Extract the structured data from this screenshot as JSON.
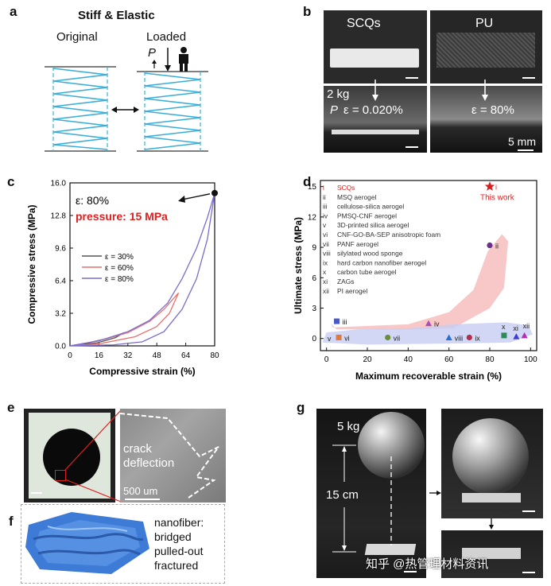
{
  "panels": {
    "a": {
      "label": "a",
      "title": "Stiff & Elastic",
      "original": "Original",
      "loaded": "Loaded",
      "force": "P"
    },
    "b": {
      "label": "b",
      "scqs": "SCQs",
      "pu": "PU",
      "weight": "2 kg",
      "force": "P",
      "strain_scqs": "ε = 0.020%",
      "strain_pu": "ε = 80%",
      "scale": "5 mm"
    },
    "c": {
      "label": "c"
    },
    "d": {
      "label": "d"
    },
    "e": {
      "label": "e",
      "crack1": "crack",
      "crack2": "deflection",
      "scale": "500 um"
    },
    "f": {
      "label": "f",
      "lines": [
        "nanofiber:",
        "bridged",
        "pulled-out",
        "fractured"
      ]
    },
    "g": {
      "label": "g",
      "weight": "5 kg",
      "height": "15 cm",
      "watermark": "知乎 @热管理材料资讯"
    }
  },
  "chart_data": [
    {
      "type": "line",
      "xlabel": "Compressive strain (%)",
      "ylabel": "Compressive stress (MPa)",
      "xlim": [
        0,
        80
      ],
      "ylim": [
        0,
        16
      ],
      "xticks": [
        0,
        16,
        32,
        48,
        64,
        80
      ],
      "yticks": [
        0.0,
        3.2,
        6.4,
        9.6,
        12.8,
        16.0
      ],
      "annotation_strain": "ε: 80%",
      "annotation_pressure": "pressure: 15 MPa",
      "series": [
        {
          "name": "ε = 30%",
          "color": "#555555",
          "loading": [
            [
              0,
              0
            ],
            [
              10,
              0.3
            ],
            [
              20,
              0.7
            ],
            [
              26,
              1.0
            ],
            [
              30,
              1.3
            ]
          ],
          "unloading": [
            [
              30,
              1.3
            ],
            [
              25,
              0.8
            ],
            [
              15,
              0.3
            ],
            [
              0,
              0
            ]
          ]
        },
        {
          "name": "ε = 60%",
          "color": "#e8716c",
          "loading": [
            [
              0,
              0
            ],
            [
              16,
              0.5
            ],
            [
              32,
              1.3
            ],
            [
              44,
              2.4
            ],
            [
              52,
              3.6
            ],
            [
              60,
              5.2
            ]
          ],
          "unloading": [
            [
              60,
              5.2
            ],
            [
              55,
              3.2
            ],
            [
              48,
              1.9
            ],
            [
              36,
              0.9
            ],
            [
              16,
              0.2
            ],
            [
              0,
              0
            ]
          ]
        },
        {
          "name": "ε = 80%",
          "color": "#7a6ccf",
          "loading": [
            [
              0,
              0
            ],
            [
              16,
              0.5
            ],
            [
              32,
              1.4
            ],
            [
              44,
              2.5
            ],
            [
              54,
              4.2
            ],
            [
              62,
              6.6
            ],
            [
              70,
              9.6
            ],
            [
              76,
              12.6
            ],
            [
              80,
              15.0
            ]
          ],
          "unloading": [
            [
              80,
              15.0
            ],
            [
              76,
              10.5
            ],
            [
              70,
              6.6
            ],
            [
              62,
              3.6
            ],
            [
              52,
              1.4
            ],
            [
              40,
              0.4
            ],
            [
              24,
              0.1
            ],
            [
              0,
              0
            ]
          ]
        }
      ],
      "endpoint": [
        80,
        15.0
      ]
    },
    {
      "type": "scatter",
      "xlabel": "Maximum recoverable strain (%)",
      "ylabel": "Ultimate stress (MPa)",
      "xlim": [
        -3,
        103
      ],
      "ylim": [
        -1.2,
        15.6
      ],
      "xticks": [
        0,
        20,
        40,
        60,
        80,
        100
      ],
      "yticks": [
        0,
        3,
        6,
        9,
        12,
        15
      ],
      "this_work": "This work",
      "legend": [
        {
          "num": "i",
          "name": "SCQs",
          "color": "#e02020"
        },
        {
          "num": "ii",
          "name": "MSQ aerogel",
          "color": "#333333"
        },
        {
          "num": "iii",
          "name": "cellulose-silica aerogel",
          "color": "#333333"
        },
        {
          "num": "iv",
          "name": "PMSQ-CNF aerogel",
          "color": "#333333"
        },
        {
          "num": "v",
          "name": "3D-printed silica aerogel",
          "color": "#333333"
        },
        {
          "num": "vi",
          "name": "CNF-GO-BA-SEP anisotropic foam",
          "color": "#333333"
        },
        {
          "num": "vii",
          "name": "PANF aerogel",
          "color": "#333333"
        },
        {
          "num": "viii",
          "name": "silylated wood sponge",
          "color": "#333333"
        },
        {
          "num": "ix",
          "name": "hard carbon nanofiber aerogel",
          "color": "#333333"
        },
        {
          "num": "x",
          "name": "carbon tube aerogel",
          "color": "#333333"
        },
        {
          "num": "xi",
          "name": "ZAGs",
          "color": "#333333"
        },
        {
          "num": "xii",
          "name": "PI aerogel",
          "color": "#333333"
        }
      ],
      "points": [
        {
          "num": "i",
          "x": 80,
          "y": 15.0,
          "shape": "star",
          "color": "#d81e1e"
        },
        {
          "num": "ii",
          "x": 80,
          "y": 9.2,
          "shape": "circle",
          "color": "#6b2f8c"
        },
        {
          "num": "iii",
          "x": 5,
          "y": 1.7,
          "shape": "square",
          "color": "#4a57c9"
        },
        {
          "num": "iv",
          "x": 50,
          "y": 1.5,
          "shape": "triangle",
          "color": "#b04bb0"
        },
        {
          "num": "v",
          "x": 2,
          "y": 0.05,
          "shape": "none",
          "color": "#333333"
        },
        {
          "num": "vi",
          "x": 6,
          "y": 0.1,
          "shape": "square",
          "color": "#e07a3a"
        },
        {
          "num": "vii",
          "x": 30,
          "y": 0.1,
          "shape": "circle",
          "color": "#6a8f3a"
        },
        {
          "num": "viii",
          "x": 60,
          "y": 0.1,
          "shape": "triangle",
          "color": "#2a6fd1"
        },
        {
          "num": "ix",
          "x": 70,
          "y": 0.1,
          "shape": "circle",
          "color": "#b0304a"
        },
        {
          "num": "x",
          "x": 87,
          "y": 0.3,
          "shape": "square",
          "color": "#2f8a5a"
        },
        {
          "num": "xi",
          "x": 93,
          "y": 0.2,
          "shape": "triangle",
          "color": "#3b3bd6"
        },
        {
          "num": "xii",
          "x": 97,
          "y": 0.3,
          "shape": "triangle",
          "color": "#b02fb0"
        }
      ]
    }
  ]
}
